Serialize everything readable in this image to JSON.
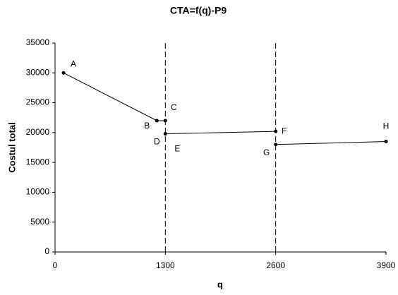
{
  "chart_data": {
    "type": "line",
    "title": "CTA=f(q)-P9",
    "x_label": "q",
    "y_label": "Costul total",
    "x": [
      100,
      1200,
      1300,
      null,
      1300,
      1300,
      2600,
      null,
      2600,
      3900
    ],
    "series": [
      {
        "name": "CTA",
        "color": "#000000",
        "values": [
          30000,
          22000,
          22000,
          null,
          19800,
          19800,
          20200,
          null,
          18000,
          18500
        ]
      }
    ],
    "point_labels": [
      "A",
      "B",
      "C",
      null,
      "D",
      "E",
      "F",
      null,
      "G",
      "H"
    ],
    "vlines": [
      1300,
      2600
    ],
    "xlim": [
      0,
      3900
    ],
    "xticks": [
      0,
      1300,
      2600,
      3900
    ],
    "ylim": [
      0,
      35000
    ],
    "yticks": [
      0,
      5000,
      10000,
      15000,
      20000,
      25000,
      30000,
      35000
    ],
    "grid": false
  }
}
